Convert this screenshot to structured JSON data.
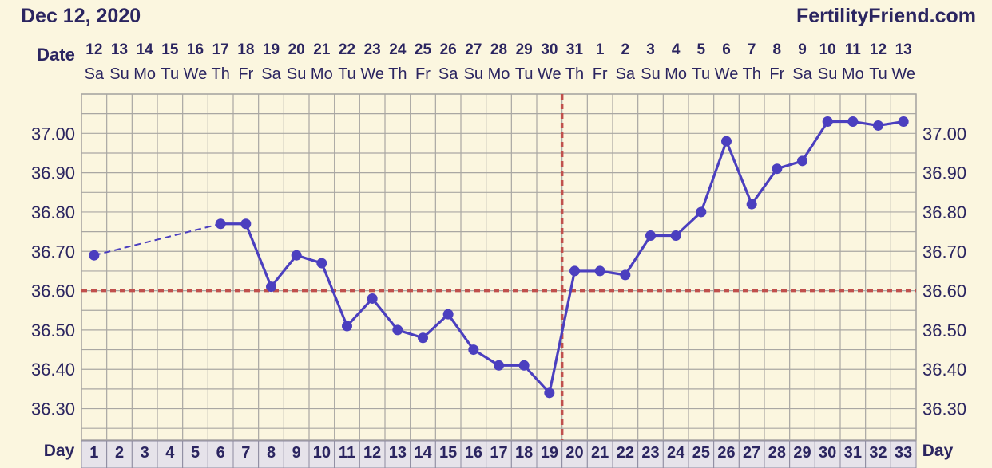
{
  "header": {
    "date": "Dec 12, 2020",
    "site": "FertilityFriend.com"
  },
  "axis_labels": {
    "date_row": "Date",
    "day_row_left": "Day",
    "day_row_right": "Day"
  },
  "colors": {
    "background": "#fbf6df",
    "line": "#4b3fbf",
    "coverline": "#c0504d",
    "grid": "#a9a7a3",
    "text": "#2b2560"
  },
  "chart_data": {
    "type": "line",
    "title": "",
    "xlabel": "Day",
    "ylabel": "",
    "x": [
      1,
      2,
      3,
      4,
      5,
      6,
      7,
      8,
      9,
      10,
      11,
      12,
      13,
      14,
      15,
      16,
      17,
      18,
      19,
      20,
      21,
      22,
      23,
      24,
      25,
      26,
      27,
      28,
      29,
      30,
      31,
      32,
      33
    ],
    "dates": [
      "12",
      "13",
      "14",
      "15",
      "16",
      "17",
      "18",
      "19",
      "20",
      "21",
      "22",
      "23",
      "24",
      "25",
      "26",
      "27",
      "28",
      "29",
      "30",
      "31",
      "1",
      "2",
      "3",
      "4",
      "5",
      "6",
      "7",
      "8",
      "9",
      "10",
      "11",
      "12",
      "13"
    ],
    "weekdays": [
      "Sa",
      "Su",
      "Mo",
      "Tu",
      "We",
      "Th",
      "Fr",
      "Sa",
      "Su",
      "Mo",
      "Tu",
      "We",
      "Th",
      "Fr",
      "Sa",
      "Su",
      "Mo",
      "Tu",
      "We",
      "Th",
      "Fr",
      "Sa",
      "Su",
      "Mo",
      "Tu",
      "We",
      "Th",
      "Fr",
      "Sa",
      "Su",
      "Mo",
      "Tu",
      "We"
    ],
    "series": [
      {
        "values": [
          36.69,
          null,
          null,
          null,
          null,
          36.77,
          36.77,
          36.61,
          36.69,
          36.67,
          36.51,
          36.58,
          36.5,
          36.48,
          36.54,
          36.45,
          36.41,
          36.41,
          36.34,
          36.65,
          36.65,
          36.64,
          36.74,
          36.74,
          36.8,
          36.98,
          36.82,
          36.91,
          36.93,
          37.03,
          37.03,
          37.02,
          37.03
        ]
      }
    ],
    "yticks": [
      "37.00",
      "36.90",
      "36.80",
      "36.70",
      "36.60",
      "36.50",
      "36.40",
      "36.30"
    ],
    "ylim": [
      36.22,
      37.1
    ],
    "coverline": 36.6,
    "ovulation_day": 19,
    "grid": true
  }
}
